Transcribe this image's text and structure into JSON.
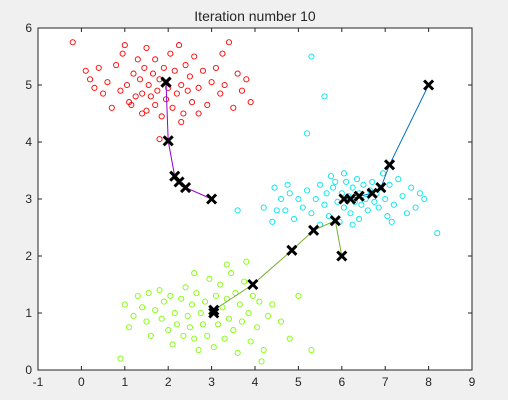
{
  "chart_data": {
    "type": "scatter",
    "title": "Iteration number 10",
    "xlabel": "",
    "ylabel": "",
    "xlim": [
      -1,
      9
    ],
    "ylim": [
      0,
      6
    ],
    "xticks": [
      "-1",
      "0",
      "1",
      "2",
      "3",
      "4",
      "5",
      "6",
      "7",
      "8",
      "9"
    ],
    "yticks": [
      "0",
      "1",
      "2",
      "3",
      "4",
      "5",
      "6"
    ],
    "grid": false,
    "legend": "none",
    "series": [
      {
        "color": "#ff0000",
        "marker": "circle-open",
        "points": [
          [
            -0.2,
            5.75
          ],
          [
            0.1,
            5.25
          ],
          [
            0.2,
            5.1
          ],
          [
            0.3,
            4.95
          ],
          [
            0.4,
            5.3
          ],
          [
            0.5,
            4.85
          ],
          [
            0.6,
            5.05
          ],
          [
            0.7,
            4.6
          ],
          [
            0.8,
            5.35
          ],
          [
            0.9,
            4.9
          ],
          [
            0.95,
            5.55
          ],
          [
            1.0,
            5.7
          ],
          [
            1.05,
            5.0
          ],
          [
            1.1,
            4.7
          ],
          [
            1.15,
            4.65
          ],
          [
            1.2,
            5.2
          ],
          [
            1.25,
            4.8
          ],
          [
            1.3,
            5.45
          ],
          [
            1.35,
            5.1
          ],
          [
            1.4,
            4.85
          ],
          [
            1.45,
            5.3
          ],
          [
            1.5,
            4.55
          ],
          [
            1.5,
            5.65
          ],
          [
            1.55,
            5.0
          ],
          [
            1.6,
            4.8
          ],
          [
            1.65,
            5.2
          ],
          [
            1.7,
            4.65
          ],
          [
            1.7,
            5.45
          ],
          [
            1.75,
            4.9
          ],
          [
            1.8,
            4.05
          ],
          [
            1.8,
            5.1
          ],
          [
            1.85,
            4.45
          ],
          [
            1.9,
            5.3
          ],
          [
            1.95,
            4.75
          ],
          [
            2.0,
            4.95
          ],
          [
            2.05,
            5.55
          ],
          [
            2.1,
            4.6
          ],
          [
            2.15,
            5.25
          ],
          [
            2.2,
            4.85
          ],
          [
            2.25,
            5.7
          ],
          [
            2.3,
            5.0
          ],
          [
            2.35,
            4.5
          ],
          [
            2.4,
            5.35
          ],
          [
            2.45,
            4.9
          ],
          [
            2.5,
            5.15
          ],
          [
            2.55,
            4.7
          ],
          [
            2.6,
            5.5
          ],
          [
            2.7,
            4.95
          ],
          [
            2.8,
            5.25
          ],
          [
            2.9,
            4.65
          ],
          [
            3.0,
            5.05
          ],
          [
            3.1,
            5.3
          ],
          [
            3.2,
            4.85
          ],
          [
            3.25,
            5.55
          ],
          [
            3.3,
            5.0
          ],
          [
            3.4,
            5.75
          ],
          [
            3.5,
            4.6
          ],
          [
            3.6,
            5.2
          ],
          [
            3.7,
            4.9
          ],
          [
            3.8,
            5.1
          ],
          [
            3.9,
            4.7
          ],
          [
            2.7,
            4.5
          ],
          [
            1.4,
            4.5
          ],
          [
            2.3,
            4.35
          ]
        ]
      },
      {
        "color": "#00e5ee",
        "marker": "circle-open",
        "points": [
          [
            5.3,
            5.5
          ],
          [
            5.6,
            4.8
          ],
          [
            5.2,
            4.15
          ],
          [
            3.6,
            2.8
          ],
          [
            4.2,
            2.85
          ],
          [
            4.4,
            2.6
          ],
          [
            4.5,
            2.8
          ],
          [
            4.6,
            3.0
          ],
          [
            4.7,
            2.8
          ],
          [
            4.8,
            3.1
          ],
          [
            4.9,
            2.65
          ],
          [
            5.0,
            3.0
          ],
          [
            5.1,
            2.85
          ],
          [
            5.2,
            3.15
          ],
          [
            5.3,
            2.75
          ],
          [
            5.4,
            3.0
          ],
          [
            5.5,
            3.25
          ],
          [
            5.6,
            2.9
          ],
          [
            5.65,
            3.1
          ],
          [
            5.7,
            2.7
          ],
          [
            5.8,
            3.2
          ],
          [
            5.85,
            3.3
          ],
          [
            5.9,
            2.95
          ],
          [
            6.0,
            3.1
          ],
          [
            6.05,
            2.85
          ],
          [
            6.1,
            3.3
          ],
          [
            6.15,
            3.05
          ],
          [
            6.2,
            2.75
          ],
          [
            6.25,
            3.2
          ],
          [
            6.3,
            2.95
          ],
          [
            6.35,
            3.35
          ],
          [
            6.4,
            3.1
          ],
          [
            6.45,
            2.9
          ],
          [
            6.5,
            3.25
          ],
          [
            6.55,
            3.0
          ],
          [
            6.6,
            2.8
          ],
          [
            6.65,
            3.15
          ],
          [
            6.7,
            3.3
          ],
          [
            6.75,
            2.95
          ],
          [
            6.8,
            3.1
          ],
          [
            6.85,
            2.85
          ],
          [
            6.9,
            3.2
          ],
          [
            7.0,
            3.0
          ],
          [
            7.05,
            2.7
          ],
          [
            7.1,
            3.25
          ],
          [
            7.2,
            2.9
          ],
          [
            7.3,
            3.35
          ],
          [
            7.4,
            3.05
          ],
          [
            7.5,
            2.75
          ],
          [
            7.6,
            3.2
          ],
          [
            7.7,
            2.85
          ],
          [
            7.8,
            3.1
          ],
          [
            7.9,
            3.0
          ],
          [
            8.2,
            2.4
          ],
          [
            5.75,
            3.4
          ],
          [
            6.05,
            3.45
          ],
          [
            6.4,
            2.65
          ],
          [
            5.5,
            2.55
          ],
          [
            6.95,
            3.45
          ],
          [
            4.75,
            3.25
          ],
          [
            4.45,
            3.2
          ],
          [
            6.25,
            2.55
          ],
          [
            7.15,
            2.6
          ],
          [
            5.95,
            2.6
          ]
        ]
      },
      {
        "color": "#7fff00",
        "marker": "circle-open",
        "points": [
          [
            0.9,
            0.2
          ],
          [
            1.0,
            1.15
          ],
          [
            1.1,
            0.75
          ],
          [
            1.2,
            0.95
          ],
          [
            1.3,
            1.3
          ],
          [
            1.4,
            1.1
          ],
          [
            1.5,
            0.85
          ],
          [
            1.55,
            1.35
          ],
          [
            1.6,
            0.6
          ],
          [
            1.7,
            1.05
          ],
          [
            1.8,
            1.4
          ],
          [
            1.85,
            0.9
          ],
          [
            1.9,
            1.2
          ],
          [
            2.0,
            0.7
          ],
          [
            2.05,
            1.3
          ],
          [
            2.1,
            0.45
          ],
          [
            2.15,
            1.0
          ],
          [
            2.2,
            0.8
          ],
          [
            2.3,
            1.25
          ],
          [
            2.35,
            0.6
          ],
          [
            2.4,
            1.45
          ],
          [
            2.45,
            0.95
          ],
          [
            2.5,
            0.75
          ],
          [
            2.55,
            1.15
          ],
          [
            2.6,
            0.55
          ],
          [
            2.65,
            1.35
          ],
          [
            2.7,
            0.35
          ],
          [
            2.75,
            1.0
          ],
          [
            2.8,
            0.8
          ],
          [
            2.85,
            1.2
          ],
          [
            2.9,
            0.6
          ],
          [
            2.95,
            1.6
          ],
          [
            3.0,
            1.0
          ],
          [
            3.05,
            0.4
          ],
          [
            3.1,
            1.3
          ],
          [
            3.15,
            0.8
          ],
          [
            3.2,
            1.5
          ],
          [
            3.25,
            1.1
          ],
          [
            3.3,
            0.55
          ],
          [
            3.35,
            1.25
          ],
          [
            3.4,
            0.9
          ],
          [
            3.45,
            1.7
          ],
          [
            3.5,
            0.7
          ],
          [
            3.55,
            1.35
          ],
          [
            3.6,
            0.3
          ],
          [
            3.65,
            1.15
          ],
          [
            3.7,
            0.85
          ],
          [
            3.75,
            1.55
          ],
          [
            3.85,
            1.0
          ],
          [
            3.9,
            0.5
          ],
          [
            3.95,
            1.3
          ],
          [
            4.05,
            0.75
          ],
          [
            4.1,
            1.2
          ],
          [
            4.2,
            0.35
          ],
          [
            4.3,
            0.95
          ],
          [
            4.4,
            1.15
          ],
          [
            4.6,
            0.85
          ],
          [
            4.8,
            0.55
          ],
          [
            5.0,
            1.3
          ],
          [
            5.3,
            0.35
          ],
          [
            3.35,
            1.85
          ],
          [
            2.6,
            1.7
          ],
          [
            4.15,
            0.15
          ],
          [
            3.8,
            1.9
          ]
        ]
      }
    ],
    "centroid_paths": [
      {
        "color": "#9400d3",
        "points": [
          [
            3.0,
            3.0
          ],
          [
            2.4,
            3.2
          ],
          [
            2.25,
            3.3
          ],
          [
            2.15,
            3.4
          ],
          [
            2.0,
            4.02
          ],
          [
            1.95,
            5.05
          ],
          [
            1.95,
            5.05
          ]
        ]
      },
      {
        "color": "#0072bd",
        "points": [
          [
            8.0,
            5.0
          ],
          [
            7.1,
            3.6
          ],
          [
            6.9,
            3.2
          ],
          [
            6.7,
            3.1
          ],
          [
            6.4,
            3.05
          ],
          [
            6.2,
            3.0
          ],
          [
            6.05,
            3.0
          ]
        ]
      },
      {
        "color": "#77ac30",
        "points": [
          [
            6.0,
            2.0
          ],
          [
            5.85,
            2.62
          ],
          [
            5.35,
            2.45
          ],
          [
            4.85,
            2.1
          ],
          [
            3.95,
            1.5
          ],
          [
            3.05,
            1.05
          ],
          [
            3.05,
            1.0
          ]
        ]
      }
    ],
    "centroid_color": "#000000",
    "centroid_marker": "x",
    "path_colors_meaning": "centroid movement history"
  }
}
